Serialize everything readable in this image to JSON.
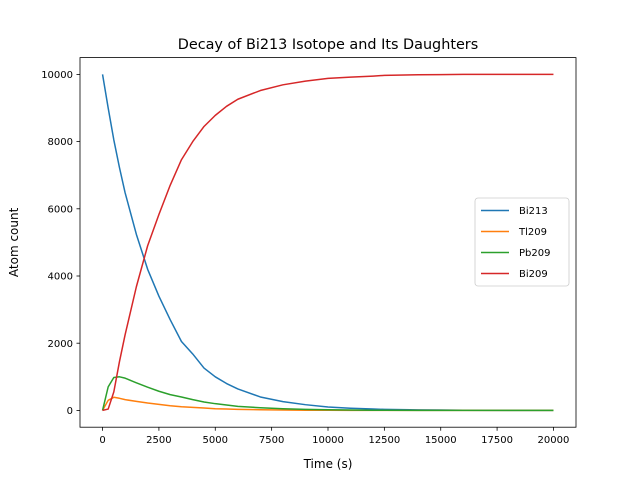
{
  "chart_data": {
    "type": "line",
    "title": "Decay of Bi213 Isotope and Its Daughters",
    "xlabel": "Time (s)",
    "ylabel": "Atom count",
    "xlim": [
      -1000,
      21000
    ],
    "ylim": [
      -500,
      10500
    ],
    "xticks": [
      0,
      2500,
      5000,
      7500,
      10000,
      12500,
      15000,
      17500,
      20000
    ],
    "yticks": [
      0,
      2000,
      4000,
      6000,
      8000,
      10000
    ],
    "grid": false,
    "legend_position": "center-right",
    "x": [
      0,
      250,
      500,
      750,
      1000,
      1500,
      2000,
      2500,
      3000,
      3500,
      4000,
      4500,
      5000,
      5500,
      6000,
      7000,
      8000,
      9000,
      10000,
      11000,
      12000,
      12500,
      14000,
      15000,
      16000,
      18000,
      20000
    ],
    "series": [
      {
        "name": "Bi213",
        "color": "#1f77b4",
        "values": [
          10000,
          9000,
          8050,
          7230,
          6480,
          5240,
          4200,
          3400,
          2700,
          2050,
          1680,
          1260,
          1000,
          800,
          640,
          400,
          260,
          170,
          100,
          65,
          40,
          30,
          15,
          10,
          5,
          2,
          0
        ]
      },
      {
        "name": "Tl209",
        "color": "#ff7f0e",
        "values": [
          0,
          300,
          390,
          360,
          320,
          270,
          220,
          180,
          140,
          110,
          90,
          70,
          50,
          40,
          30,
          20,
          10,
          5,
          3,
          2,
          1,
          0,
          0,
          0,
          0,
          0,
          0
        ]
      },
      {
        "name": "Pb209",
        "color": "#2ca02c",
        "values": [
          0,
          700,
          980,
          1000,
          960,
          820,
          690,
          570,
          470,
          400,
          320,
          250,
          200,
          160,
          120,
          80,
          50,
          30,
          20,
          10,
          5,
          3,
          2,
          1,
          0,
          0,
          0
        ]
      },
      {
        "name": "Bi209",
        "color": "#d62728",
        "values": [
          0,
          40,
          550,
          1450,
          2250,
          3680,
          4900,
          5830,
          6700,
          7460,
          8000,
          8450,
          8780,
          9050,
          9260,
          9520,
          9690,
          9800,
          9880,
          9920,
          9950,
          9970,
          9990,
          9995,
          10000,
          10000,
          10000
        ]
      }
    ]
  }
}
